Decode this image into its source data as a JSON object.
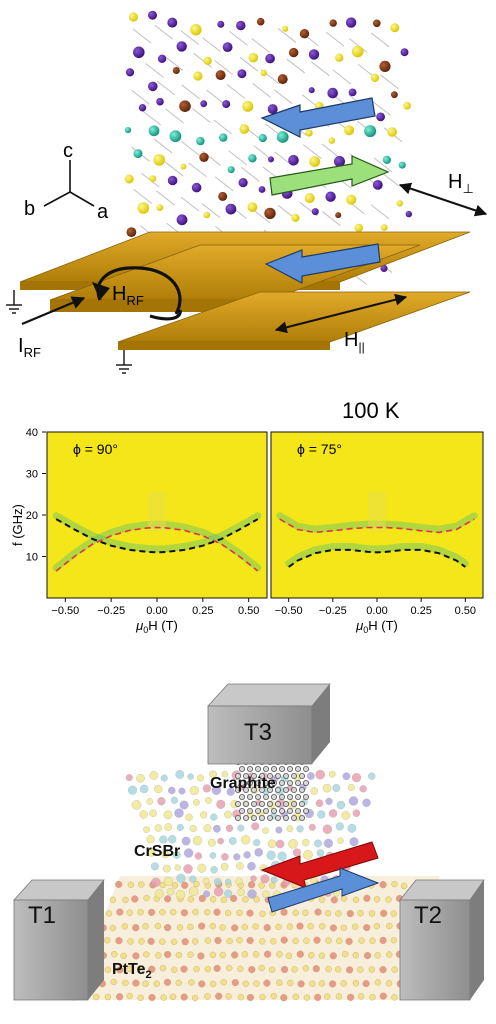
{
  "top": {
    "axes": {
      "c": "c",
      "b": "b",
      "a": "a"
    },
    "h_perp": {
      "main": "H",
      "sub": "⊥"
    },
    "h_para": {
      "main": "H",
      "sub": "||"
    },
    "h_rf": {
      "main": "H",
      "sub": "RF"
    },
    "i_rf": {
      "main": "I",
      "sub": "RF"
    },
    "colors": {
      "gold": "#c8920a",
      "purple": "#4b1a8c",
      "teal": "#1fb39a",
      "yellow": "#f2e21a",
      "brown": "#7a3010",
      "blue_arrow": "#5b8fd8",
      "green_arrow": "#9be07a"
    }
  },
  "mid": {
    "temperature": "100 K",
    "ylabel": "f (GHz)",
    "xlabel": {
      "pre": "μ",
      "sub": "0",
      "post": "H (T)"
    },
    "yticks": [
      "40",
      "30",
      "20",
      "10"
    ],
    "xticks": [
      "−0.50",
      "−0.25",
      "0.00",
      "0.25",
      "0.50"
    ],
    "panels": [
      {
        "label": "ϕ = 90°"
      },
      {
        "label": "ϕ = 75°"
      }
    ],
    "colors": {
      "background": "#f5e61a",
      "band": "#5fc46a",
      "red_dash": "#e0304a",
      "black_dash": "#111111"
    }
  },
  "chart_data": [
    {
      "type": "line",
      "title": "ϕ = 90°",
      "xlabel": "μ0H (T)",
      "ylabel": "f (GHz)",
      "xlim": [
        -0.6,
        0.6
      ],
      "ylim": [
        0,
        40
      ],
      "series": [
        {
          "x": [
            -0.55,
            -0.45,
            -0.35,
            -0.25,
            -0.15,
            -0.05,
            0.0,
            0.05,
            0.15,
            0.25,
            0.35,
            0.45,
            0.55
          ],
          "values": [
            6.5,
            10.0,
            13.0,
            15.0,
            16.3,
            16.9,
            17.0,
            16.9,
            16.3,
            15.0,
            13.0,
            10.0,
            6.5
          ],
          "color": "#e0304a",
          "style": "dashed"
        },
        {
          "x": [
            -0.55,
            -0.45,
            -0.35,
            -0.25,
            -0.15,
            -0.05,
            0.0,
            0.05,
            0.15,
            0.25,
            0.35,
            0.45,
            0.55
          ],
          "values": [
            19.0,
            16.5,
            14.2,
            12.6,
            11.6,
            11.1,
            11.0,
            11.1,
            11.6,
            12.6,
            14.2,
            16.5,
            19.0
          ],
          "color": "#111111",
          "style": "dashed"
        }
      ]
    },
    {
      "type": "line",
      "title": "ϕ = 75°",
      "xlabel": "μ0H (T)",
      "ylabel": "f (GHz)",
      "xlim": [
        -0.6,
        0.6
      ],
      "ylim": [
        0,
        40
      ],
      "series": [
        {
          "x": [
            -0.55,
            -0.45,
            -0.35,
            -0.25,
            -0.15,
            -0.05,
            0.0,
            0.05,
            0.15,
            0.25,
            0.35,
            0.45,
            0.55
          ],
          "values": [
            19.0,
            16.5,
            15.8,
            16.2,
            16.7,
            17.0,
            17.0,
            17.0,
            16.7,
            16.2,
            15.8,
            16.5,
            19.0
          ],
          "color": "#e0304a",
          "style": "dashed"
        },
        {
          "x": [
            -0.5,
            -0.45,
            -0.35,
            -0.25,
            -0.15,
            -0.05,
            0.0,
            0.05,
            0.15,
            0.25,
            0.35,
            0.45,
            0.5
          ],
          "values": [
            7.5,
            9.0,
            10.8,
            11.6,
            11.6,
            11.1,
            11.0,
            11.1,
            11.6,
            11.6,
            10.8,
            9.0,
            7.5
          ],
          "color": "#111111",
          "style": "dashed"
        }
      ]
    }
  ],
  "bottom": {
    "t1": "T1",
    "t2": "T2",
    "t3": "T3",
    "graphite": "Graphite",
    "crsbr": "CrSBr",
    "ptte": {
      "main": "PtTe",
      "sub": "2"
    },
    "colors": {
      "box": "#9a9a9a",
      "box_top": "#c8c8c8",
      "box_side": "#b4b4b4",
      "red_arrow": "#d81818",
      "blue_arrow": "#5b8fd8"
    }
  }
}
